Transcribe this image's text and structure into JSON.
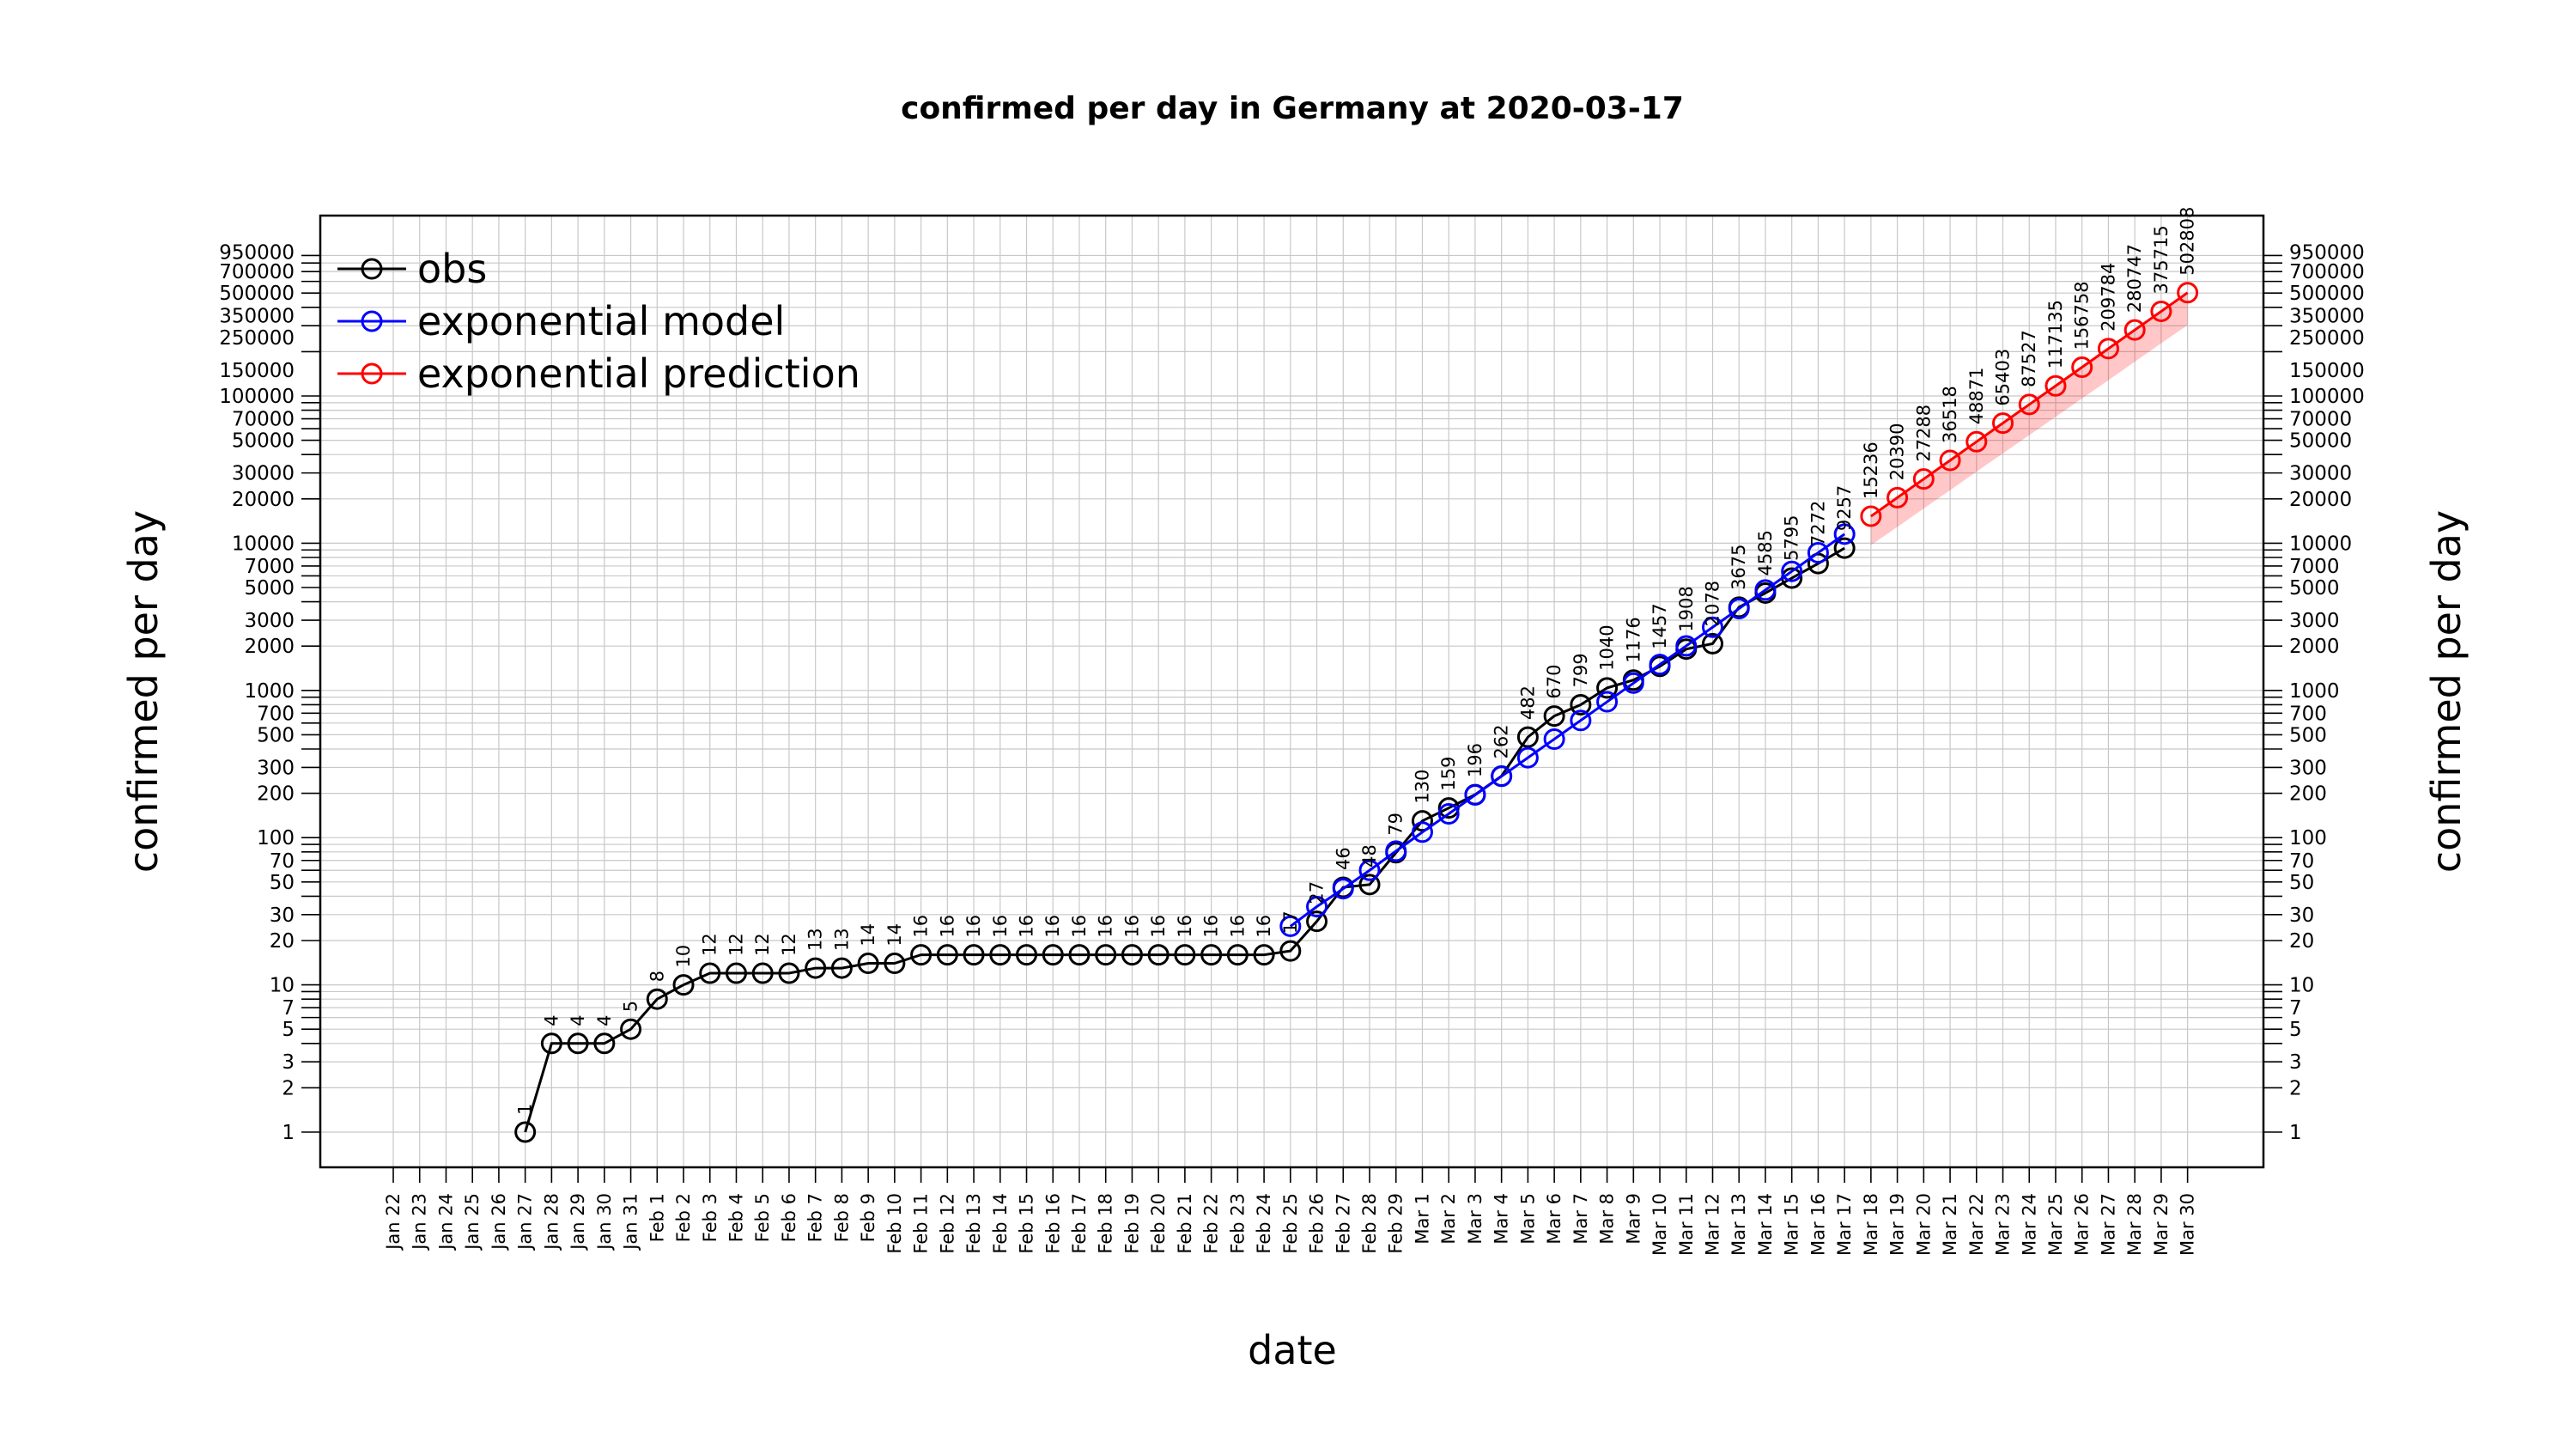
{
  "chart_data": {
    "type": "line",
    "title": "confirmed per day in Germany at 2020-03-17",
    "xlabel": "date",
    "ylabel": "confirmed per day",
    "yscale": "log",
    "ylim": [
      1,
      950000
    ],
    "grid": true,
    "legend_position": "top-left",
    "x_ticks": [
      "Jan 22",
      "Jan 23",
      "Jan 24",
      "Jan 25",
      "Jan 26",
      "Jan 27",
      "Jan 28",
      "Jan 29",
      "Jan 30",
      "Jan 31",
      "Feb 1",
      "Feb 2",
      "Feb 3",
      "Feb 4",
      "Feb 5",
      "Feb 6",
      "Feb 7",
      "Feb 8",
      "Feb 9",
      "Feb 10",
      "Feb 11",
      "Feb 12",
      "Feb 13",
      "Feb 14",
      "Feb 15",
      "Feb 16",
      "Feb 17",
      "Feb 18",
      "Feb 19",
      "Feb 20",
      "Feb 21",
      "Feb 22",
      "Feb 23",
      "Feb 24",
      "Feb 25",
      "Feb 26",
      "Feb 27",
      "Feb 28",
      "Feb 29",
      "Mar 1",
      "Mar 2",
      "Mar 3",
      "Mar 4",
      "Mar 5",
      "Mar 6",
      "Mar 7",
      "Mar 8",
      "Mar 9",
      "Mar 10",
      "Mar 11",
      "Mar 12",
      "Mar 13",
      "Mar 14",
      "Mar 15",
      "Mar 16",
      "Mar 17",
      "Mar 18",
      "Mar 19",
      "Mar 20",
      "Mar 21",
      "Mar 22",
      "Mar 23",
      "Mar 24",
      "Mar 25",
      "Mar 26",
      "Mar 27",
      "Mar 28",
      "Mar 29",
      "Mar 30"
    ],
    "y_ticks": [
      1,
      2,
      3,
      5,
      7,
      10,
      20,
      30,
      50,
      70,
      100,
      200,
      300,
      500,
      700,
      1000,
      2000,
      3000,
      5000,
      7000,
      10000,
      20000,
      30000,
      50000,
      70000,
      100000,
      150000,
      250000,
      350000,
      500000,
      700000,
      950000
    ],
    "series": [
      {
        "name": "obs",
        "color": "#000000",
        "x": [
          "Jan 27",
          "Jan 28",
          "Jan 29",
          "Jan 30",
          "Jan 31",
          "Feb 1",
          "Feb 2",
          "Feb 3",
          "Feb 4",
          "Feb 5",
          "Feb 6",
          "Feb 7",
          "Feb 8",
          "Feb 9",
          "Feb 10",
          "Feb 11",
          "Feb 12",
          "Feb 13",
          "Feb 14",
          "Feb 15",
          "Feb 16",
          "Feb 17",
          "Feb 18",
          "Feb 19",
          "Feb 20",
          "Feb 21",
          "Feb 22",
          "Feb 23",
          "Feb 24",
          "Feb 25",
          "Feb 26",
          "Feb 27",
          "Feb 28",
          "Feb 29",
          "Mar 1",
          "Mar 2",
          "Mar 3",
          "Mar 4",
          "Mar 5",
          "Mar 6",
          "Mar 7",
          "Mar 8",
          "Mar 9",
          "Mar 10",
          "Mar 11",
          "Mar 12",
          "Mar 13",
          "Mar 14",
          "Mar 15",
          "Mar 16",
          "Mar 17"
        ],
        "values": [
          1,
          4,
          4,
          4,
          5,
          8,
          10,
          12,
          12,
          12,
          12,
          13,
          13,
          14,
          14,
          16,
          16,
          16,
          16,
          16,
          16,
          16,
          16,
          16,
          16,
          16,
          16,
          16,
          16,
          17,
          27,
          46,
          48,
          79,
          130,
          159,
          196,
          262,
          482,
          670,
          799,
          1040,
          1176,
          1457,
          1908,
          2078,
          3675,
          4585,
          5795,
          7272,
          9257
        ],
        "labels": [
          "1",
          "4",
          "4",
          "4",
          "5",
          "8",
          "10",
          "12",
          "12",
          "12",
          "12",
          "13",
          "13",
          "14",
          "14",
          "16",
          "16",
          "16",
          "16",
          "16",
          "16",
          "16",
          "16",
          "16",
          "16",
          "16",
          "16",
          "16",
          "16",
          "17",
          "27",
          "46",
          "48",
          "79",
          "130",
          "159",
          "196",
          "262",
          "482",
          "670",
          "799",
          "1040",
          "1176",
          "1457",
          "1908",
          "2078",
          "3675",
          "4585",
          "5795",
          "7272",
          "9257"
        ]
      },
      {
        "name": "exponential model",
        "color": "#0000ff",
        "x": [
          "Feb 25",
          "Feb 26",
          "Feb 27",
          "Feb 28",
          "Feb 29",
          "Mar 1",
          "Mar 2",
          "Mar 3",
          "Mar 4",
          "Mar 5",
          "Mar 6",
          "Mar 7",
          "Mar 8",
          "Mar 9",
          "Mar 10",
          "Mar 11",
          "Mar 12",
          "Mar 13",
          "Mar 14",
          "Mar 15",
          "Mar 16",
          "Mar 17"
        ],
        "values": [
          25,
          34,
          45,
          60,
          81,
          109,
          145,
          195,
          261,
          349,
          467,
          625,
          837,
          1121,
          1500,
          2007,
          2686,
          3594,
          4810,
          6437,
          8614,
          11527
        ]
      },
      {
        "name": "exponential prediction",
        "color": "#ff0000",
        "x": [
          "Mar 18",
          "Mar 19",
          "Mar 20",
          "Mar 21",
          "Mar 22",
          "Mar 23",
          "Mar 24",
          "Mar 25",
          "Mar 26",
          "Mar 27",
          "Mar 28",
          "Mar 29",
          "Mar 30"
        ],
        "values": [
          15236,
          20390,
          27288,
          36518,
          48871,
          65403,
          87527,
          117135,
          156758,
          209784,
          280747,
          375715,
          502808
        ],
        "labels": [
          "15236",
          "20390",
          "27288",
          "36518",
          "48871",
          "65403",
          "87527",
          "117135",
          "156758",
          "209784",
          "280747",
          "375715",
          "502808"
        ],
        "band_lower": [
          9700,
          12900,
          17200,
          22900,
          30600,
          40700,
          54200,
          72200,
          96200,
          128000,
          171000,
          228000,
          303000
        ]
      }
    ]
  }
}
